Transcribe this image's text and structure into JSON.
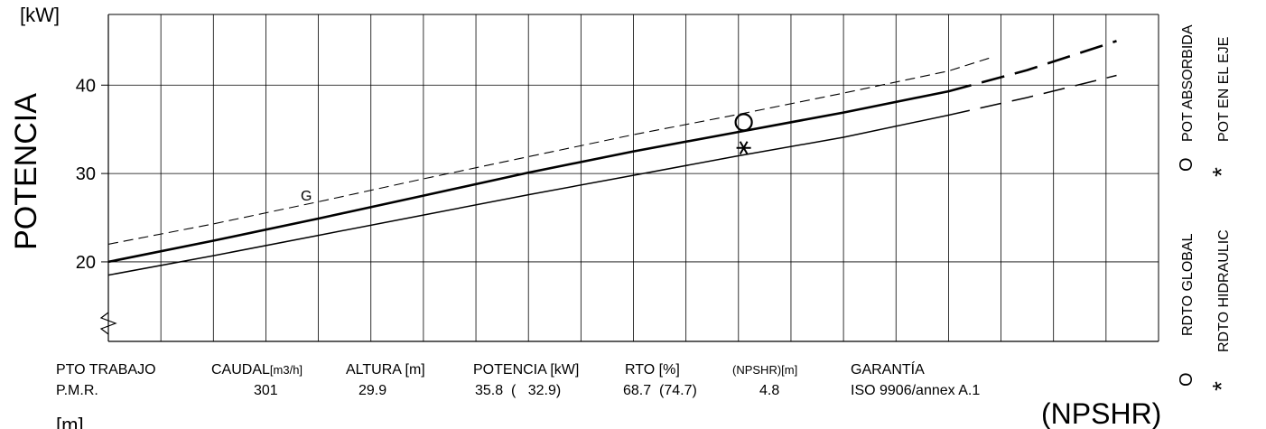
{
  "chart_data": {
    "type": "line",
    "yunit": "[kW]",
    "ylabel": "POTENCIA",
    "ylim": [
      11,
      48
    ],
    "xlim": [
      0,
      200
    ],
    "yticks": [
      20,
      30,
      40
    ],
    "grid": true,
    "series": [
      {
        "id": "thick",
        "style": "solid-bold",
        "x": [
          0,
          20,
          40,
          60,
          80,
          100,
          120,
          140,
          160
        ],
        "y": [
          20.0,
          22.4,
          24.9,
          27.5,
          30.1,
          32.5,
          34.7,
          36.9,
          39.3
        ]
      },
      {
        "id": "thick-ext",
        "style": "dashed-bold",
        "x": [
          160,
          175,
          192
        ],
        "y": [
          39.3,
          41.7,
          45.0
        ]
      },
      {
        "id": "thin",
        "style": "solid",
        "x": [
          0,
          20,
          40,
          60,
          80,
          100,
          120,
          140,
          160
        ],
        "y": [
          18.5,
          20.7,
          23.0,
          25.3,
          27.6,
          29.8,
          32.0,
          34.1,
          36.6
        ]
      },
      {
        "id": "thin-ext",
        "style": "dashed",
        "x": [
          160,
          175,
          192
        ],
        "y": [
          36.6,
          38.6,
          41.1
        ]
      },
      {
        "id": "G",
        "style": "dashed-thin",
        "label": "G",
        "x": [
          0,
          20,
          40,
          60,
          80,
          100,
          120,
          140,
          160,
          168
        ],
        "y": [
          22.0,
          24.3,
          26.8,
          29.4,
          31.9,
          34.4,
          36.7,
          39.1,
          41.6,
          43.1
        ]
      }
    ],
    "label_G": "G",
    "markers": [
      {
        "type": "circle",
        "x": 121,
        "y": 35.8
      },
      {
        "type": "asterisk",
        "x": 121,
        "y": 32.9
      }
    ],
    "legend": {
      "pot_absorbida": "POT ABSORBIDA",
      "pot_eje": "POT EN EL EJE",
      "rdto_global": "RDTO GLOBAL",
      "rdto_hidraulic": "RDTO HIDRAULIC",
      "sym_circle": "O",
      "sym_star": "*"
    },
    "table": {
      "headers": {
        "pto": "PTO TRABAJO",
        "caudal": "CAUDAL",
        "caudal_unit": "[m3/h]",
        "altura": "ALTURA [m]",
        "potencia": "POTENCIA [kW]",
        "rto": "RTO [%]",
        "npshr": "(NPSHR)[m]",
        "garantia": "GARANTÍA"
      },
      "row": {
        "pto": "P.M.R.",
        "caudal": "301",
        "altura": "29.9",
        "potencia": "35.8  (   32.9)",
        "rto": "68.7  (74.7)",
        "npshr": "4.8",
        "garantia": "ISO 9906/annex A.1"
      }
    },
    "bottom_left_unit": "[m]",
    "bottom_right_label": "(NPSHR)"
  }
}
